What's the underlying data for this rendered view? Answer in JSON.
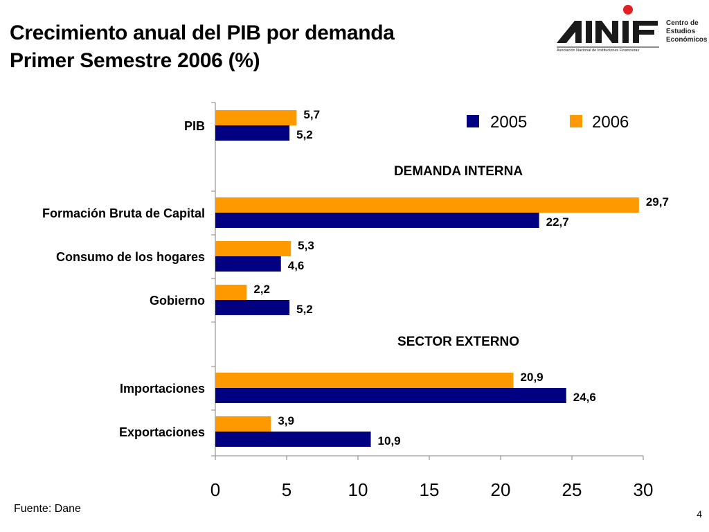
{
  "slide": {
    "title_line1": "Crecimiento anual del PIB por demanda",
    "title_line2": "Primer Semestre 2006 (%)",
    "source": "Fuente: Dane",
    "page_number": "4"
  },
  "logo": {
    "wordmark": "ANIF",
    "side_lines": [
      "Centro de",
      "Estudios",
      "Económicos"
    ],
    "subtitle": "Asociación Nacional de Instituciones Financieras",
    "accent_color": "#e31e24"
  },
  "chart_data": {
    "type": "bar",
    "orientation": "horizontal",
    "categories": [
      "PIB",
      "Formación Bruta de Capital",
      "Consumo de los hogares",
      "Gobierno",
      "Importaciones",
      "Exportaciones"
    ],
    "series": [
      {
        "name": "2005",
        "color": "#000080",
        "values": [
          5.2,
          22.7,
          4.6,
          5.2,
          24.6,
          10.9
        ],
        "labels": [
          "5,2",
          "22,7",
          "4,6",
          "5,2",
          "24,6",
          "10,9"
        ]
      },
      {
        "name": "2006",
        "color": "#ff9900",
        "values": [
          5.7,
          29.7,
          5.3,
          2.2,
          20.9,
          3.9
        ],
        "labels": [
          "5,7",
          "29,7",
          "5,3",
          "2,2",
          "20,9",
          "3,9"
        ]
      }
    ],
    "section_labels": [
      "DEMANDA INTERNA",
      "SECTOR EXTERNO"
    ],
    "xlim": [
      0,
      30
    ],
    "x_ticks": [
      0,
      5,
      10,
      15,
      20,
      25,
      30
    ],
    "x_tick_labels": [
      "0",
      "5",
      "10",
      "15",
      "20",
      "25",
      "30"
    ],
    "grid": false,
    "legend_position": "top-right"
  }
}
